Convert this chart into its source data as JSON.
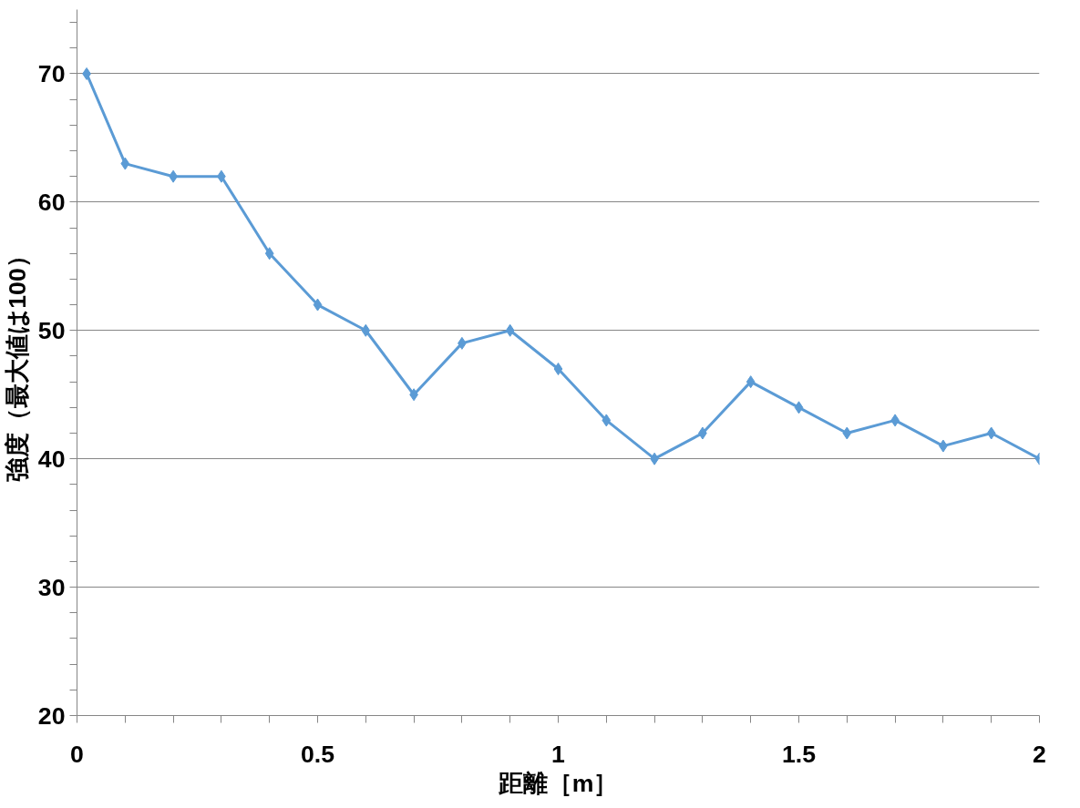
{
  "chart_data": {
    "type": "line",
    "xlabel": "距離［m］",
    "ylabel": "強度（最大値は100）",
    "x": [
      0.02,
      0.1,
      0.2,
      0.3,
      0.4,
      0.5,
      0.6,
      0.7,
      0.8,
      0.9,
      1.0,
      1.1,
      1.2,
      1.3,
      1.4,
      1.5,
      1.6,
      1.7,
      1.8,
      1.9,
      2.0
    ],
    "series": [
      {
        "color": "#5b9bd5",
        "values": [
          70,
          63,
          62,
          62,
          56,
          52,
          50,
          45,
          49,
          50,
          47,
          43,
          40,
          42,
          46,
          44,
          42,
          43,
          41,
          42,
          40
        ]
      }
    ],
    "xlim": [
      0,
      2
    ],
    "xticks": [
      0,
      {
        "value": 0.1,
        "label": null
      },
      {
        "value": 0.2,
        "label": null
      },
      {
        "value": 0.3,
        "label": null
      },
      {
        "value": 0.4,
        "label": null
      },
      0.5,
      {
        "value": 0.6,
        "label": null
      },
      {
        "value": 0.7,
        "label": null
      },
      {
        "value": 0.8,
        "label": null
      },
      {
        "value": 0.9,
        "label": null
      },
      1,
      {
        "value": 1.1,
        "label": null
      },
      {
        "value": 1.2,
        "label": null
      },
      {
        "value": 1.3,
        "label": null
      },
      {
        "value": 1.4,
        "label": null
      },
      1.5,
      {
        "value": 1.6,
        "label": null
      },
      {
        "value": 1.7,
        "label": null
      },
      {
        "value": 1.8,
        "label": null
      },
      {
        "value": 1.9,
        "label": null
      },
      2
    ],
    "ylim": [
      20,
      75
    ],
    "yticks": [
      20,
      {
        "value": 22,
        "label": null
      },
      {
        "value": 24,
        "label": null
      },
      {
        "value": 26,
        "label": null
      },
      {
        "value": 28,
        "label": null
      },
      30,
      {
        "value": 32,
        "label": null
      },
      {
        "value": 34,
        "label": null
      },
      {
        "value": 36,
        "label": null
      },
      {
        "value": 38,
        "label": null
      },
      40,
      {
        "value": 42,
        "label": null
      },
      {
        "value": 44,
        "label": null
      },
      {
        "value": 46,
        "label": null
      },
      {
        "value": 48,
        "label": null
      },
      50,
      {
        "value": 52,
        "label": null
      },
      {
        "value": 54,
        "label": null
      },
      {
        "value": 56,
        "label": null
      },
      {
        "value": 58,
        "label": null
      },
      60,
      {
        "value": 62,
        "label": null
      },
      {
        "value": 64,
        "label": null
      },
      {
        "value": 66,
        "label": null
      },
      {
        "value": 68,
        "label": null
      },
      70,
      {
        "value": 72,
        "label": null
      },
      {
        "value": 74,
        "label": null
      }
    ],
    "grid": "y",
    "marker": "diamond",
    "line_style": "solid"
  }
}
